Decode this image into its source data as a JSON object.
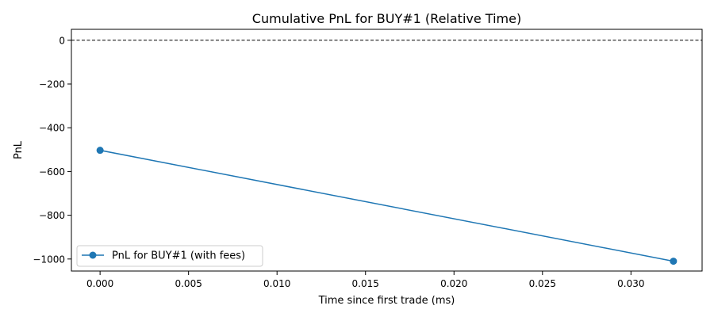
{
  "chart_data": {
    "type": "line",
    "title": "Cumulative PnL for BUY#1 (Relative Time)",
    "xlabel": "Time since first trade (ms)",
    "ylabel": "PnL",
    "xlim": [
      -0.00162,
      0.03402
    ],
    "ylim": [
      -1055,
      50
    ],
    "x_ticks": [
      0.0,
      0.005,
      0.01,
      0.015,
      0.02,
      0.025,
      0.03
    ],
    "x_tick_labels": [
      "0.000",
      "0.005",
      "0.010",
      "0.015",
      "0.020",
      "0.025",
      "0.030"
    ],
    "y_ticks": [
      0,
      -200,
      -400,
      -600,
      -800,
      -1000
    ],
    "y_tick_labels": [
      "0",
      "−200",
      "−400",
      "−600",
      "−800",
      "−1000"
    ],
    "series": [
      {
        "name": "PnL for BUY#1 (with fees)",
        "color": "#1f77b4",
        "marker": "circle",
        "x": [
          0.0,
          0.0324
        ],
        "y": [
          -503,
          -1010
        ]
      }
    ],
    "reference_line": {
      "y": 0,
      "style": "dashed",
      "color": "#000000"
    },
    "legend": {
      "placement": "lower-left"
    },
    "grid": false
  }
}
